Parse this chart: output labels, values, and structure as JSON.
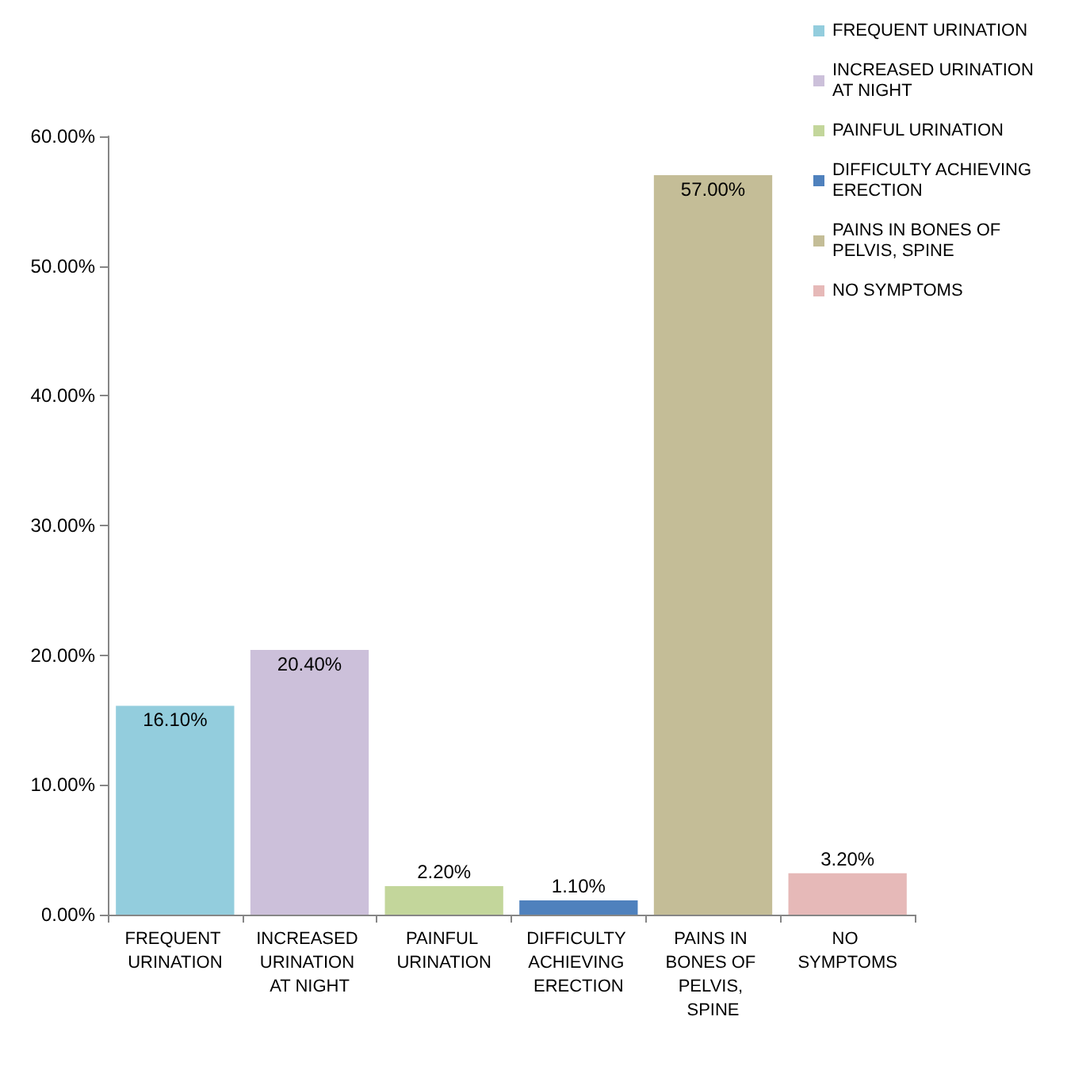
{
  "chart_data": {
    "type": "bar",
    "categories": [
      "FREQUENT URINATION",
      "INCREASED URINATION AT NIGHT",
      "PAINFUL URINATION",
      "DIFFICULTY ACHIEVING ERECTION",
      "PAINS IN BONES OF PELVIS, SPINE",
      "NO SYMPTOMS"
    ],
    "series": [
      {
        "name": "FREQUENT URINATION",
        "color": "#93cddd",
        "values": [
          16.1,
          null,
          null,
          null,
          null,
          null
        ],
        "value_labels": [
          "16.10%",
          null,
          null,
          null,
          null,
          null
        ]
      },
      {
        "name": "INCREASED URINATION AT NIGHT",
        "color": "#ccc0da",
        "values": [
          null,
          20.4,
          null,
          null,
          null,
          null
        ],
        "value_labels": [
          null,
          "20.40%",
          null,
          null,
          null,
          null
        ]
      },
      {
        "name": "PAINFUL URINATION",
        "color": "#c3d69b",
        "values": [
          null,
          null,
          2.2,
          null,
          null,
          null
        ],
        "value_labels": [
          null,
          null,
          "2.20%",
          null,
          null,
          null
        ]
      },
      {
        "name": "DIFFICULTY ACHIEVING ERECTION",
        "color": "#4f81bd",
        "values": [
          null,
          null,
          null,
          1.1,
          null,
          null
        ],
        "value_labels": [
          null,
          null,
          null,
          "1.10%",
          null,
          null
        ]
      },
      {
        "name": "PAINS IN BONES OF PELVIS, SPINE",
        "color": "#c4bd97",
        "values": [
          null,
          null,
          null,
          null,
          57.0,
          null
        ],
        "value_labels": [
          null,
          null,
          null,
          null,
          "57.00%",
          null
        ]
      },
      {
        "name": "NO SYMPTOMS",
        "color": "#e6b9b8",
        "values": [
          null,
          null,
          null,
          null,
          null,
          3.2
        ],
        "value_labels": [
          null,
          null,
          null,
          null,
          null,
          "3.20%"
        ]
      }
    ],
    "ylim": [
      0,
      60
    ],
    "yticks": [
      {
        "value": 0,
        "label": "0.00%"
      },
      {
        "value": 10,
        "label": "10.00%"
      },
      {
        "value": 20,
        "label": "20.00%"
      },
      {
        "value": 30,
        "label": "30.00%"
      },
      {
        "value": 40,
        "label": "40.00%"
      },
      {
        "value": 50,
        "label": "50.00%"
      },
      {
        "value": 60,
        "label": "60.00%"
      }
    ],
    "grid": false,
    "legend": "top right"
  }
}
